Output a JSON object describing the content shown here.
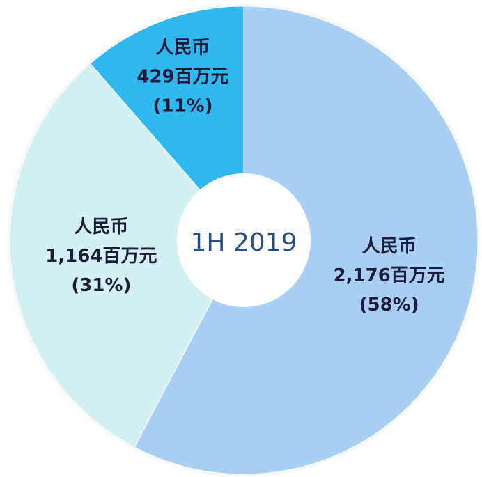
{
  "chart_data": {
    "type": "donut",
    "center_label": "1H 2019",
    "currency": "人民币",
    "values": [
      2176,
      1164,
      429
    ],
    "value_labels": [
      "2,176百万元",
      "1,164百万元",
      "429百万元"
    ],
    "percents": [
      58,
      31,
      11
    ],
    "percent_labels": [
      "(58%)",
      "(31%)",
      "(11%)"
    ],
    "colors": [
      "#a9cff3",
      "#d3f1f2",
      "#2fb7ee"
    ]
  }
}
